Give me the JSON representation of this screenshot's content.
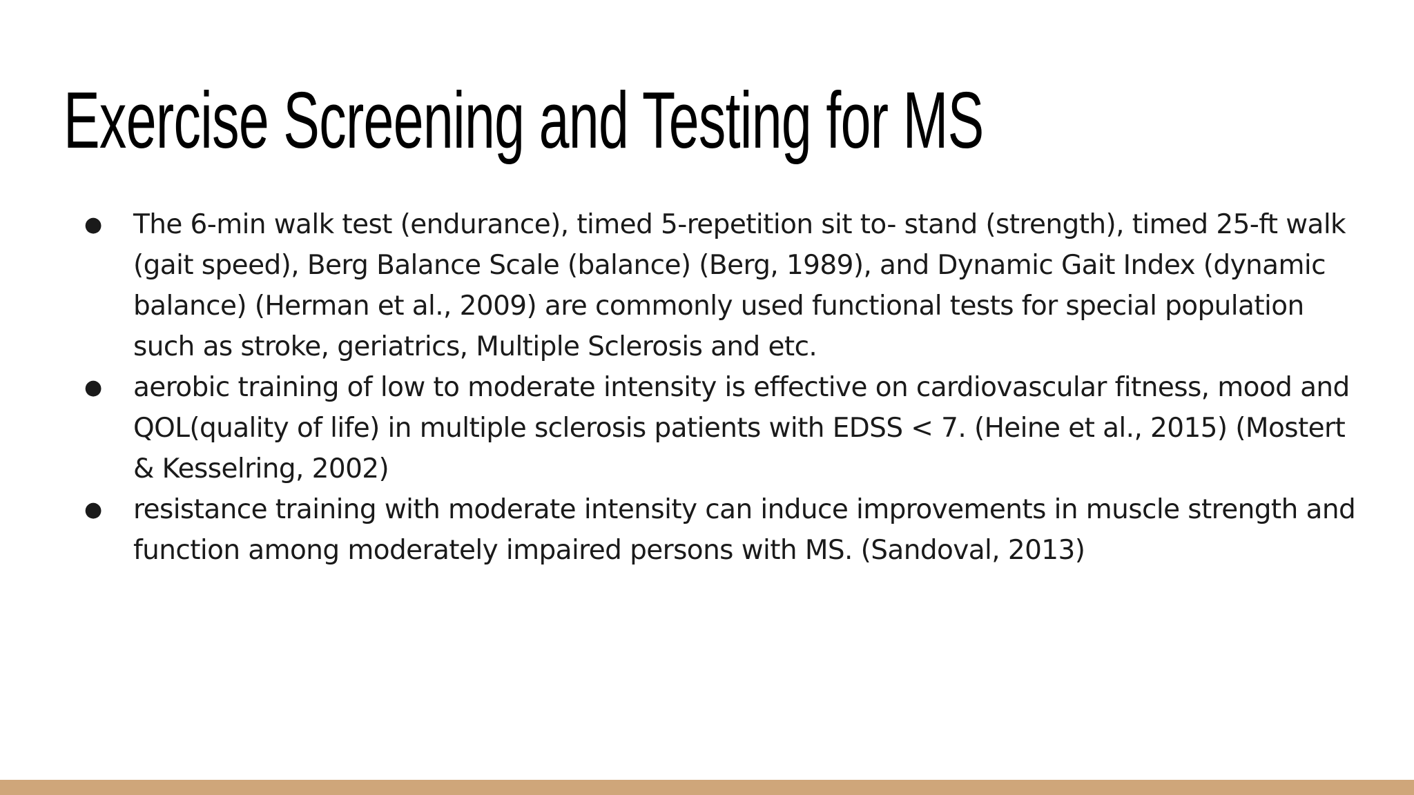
{
  "slide": {
    "title": "Exercise Screening and Testing for MS",
    "bullets": [
      "The 6-min walk test (endurance), timed 5-repetition sit to- stand (strength), timed 25-ft walk (gait speed), Berg Balance Scale (balance) (Berg, 1989), and Dynamic Gait Index (dynamic balance) (Herman et al., 2009) are commonly used functional tests for special population such as stroke, geriatrics, Multiple Sclerosis and etc.",
      "aerobic training of low to moderate intensity is effective on cardiovascular fitness, mood and QOL(quality of life) in multiple sclerosis patients with EDSS < 7. (Heine et al., 2015) (Mostert & Kesselring, 2002)",
      "resistance training with moderate intensity can induce improvements in muscle strength and function among moderately impaired persons with MS. (Sandoval, 2013)"
    ],
    "bullet_symbol": "●"
  },
  "colors": {
    "background": "#ffffff",
    "text": "#1a1a1a",
    "footer_bar": "#cfa67a"
  }
}
